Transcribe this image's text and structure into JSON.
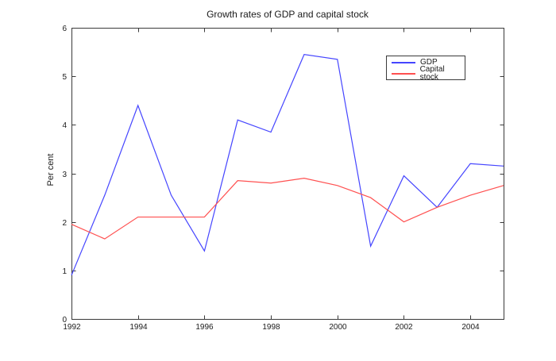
{
  "figure": {
    "title": "Growth rates of GDP and capital stock",
    "ylabel": "Per cent",
    "background": "#ffffff",
    "axis_color": "#3a3a3a",
    "text_color": "#1a1a1a"
  },
  "legend": {
    "entries": [
      {
        "label": "GDP",
        "color": "#4545ff"
      },
      {
        "label": "Capital stock",
        "color": "#ff5050"
      }
    ]
  },
  "chart_data": {
    "type": "line",
    "title": "Growth rates of GDP and capital stock",
    "xlabel": "",
    "ylabel": "Per cent",
    "x": [
      1992,
      1993,
      1994,
      1995,
      1996,
      1997,
      1998,
      1999,
      2000,
      2001,
      2002,
      2003,
      2004,
      2005
    ],
    "series": [
      {
        "name": "GDP",
        "color": "#4545ff",
        "values": [
          0.9,
          2.55,
          4.4,
          2.55,
          1.4,
          4.1,
          3.85,
          5.45,
          5.35,
          1.5,
          2.95,
          2.3,
          3.2,
          3.15
        ]
      },
      {
        "name": "Capital stock",
        "color": "#ff5050",
        "values": [
          1.95,
          1.65,
          2.1,
          2.1,
          2.1,
          2.85,
          2.8,
          2.9,
          2.75,
          2.5,
          2.0,
          2.3,
          2.55,
          2.75
        ]
      }
    ],
    "xlim": [
      1992,
      2005
    ],
    "ylim": [
      0,
      6
    ],
    "xticks": [
      1992,
      1994,
      1996,
      1998,
      2000,
      2002,
      2004
    ],
    "yticks": [
      0,
      1,
      2,
      3,
      4,
      5,
      6
    ],
    "grid": false,
    "box": true,
    "tick_direction": "in",
    "legend_position": "upper-right-inside"
  }
}
